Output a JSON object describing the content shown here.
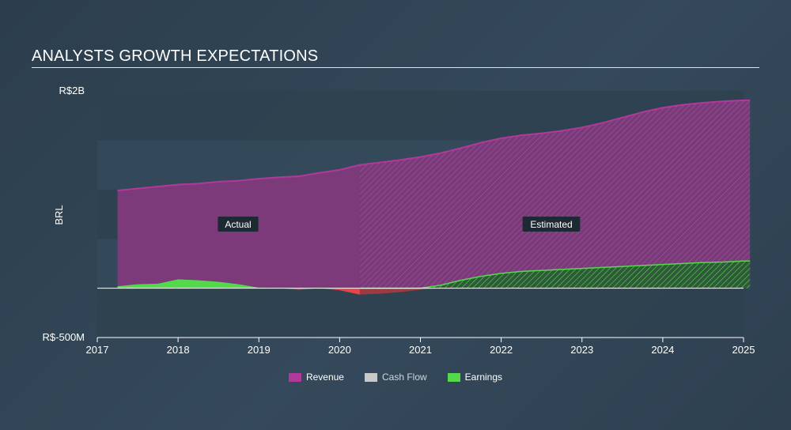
{
  "page_title": "ANALYSTS GROWTH EXPECTATIONS",
  "chart_data": {
    "type": "area",
    "ylabel": "BRL",
    "ylim": [
      -500,
      2000
    ],
    "ytick_labels": [
      {
        "value": 2000,
        "label": "R$2B"
      },
      {
        "value": -500,
        "label": "R$-500M"
      }
    ],
    "xlim": [
      2017,
      2025
    ],
    "xticks": [
      2017,
      2018,
      2019,
      2020,
      2021,
      2022,
      2023,
      2024,
      2025
    ],
    "actual_end": 2020.25,
    "region_labels": {
      "actual": "Actual",
      "estimated": "Estimated"
    },
    "series": [
      {
        "name": "Revenue",
        "color": "#b0399a",
        "x": [
          2017.25,
          2017.5,
          2017.75,
          2018.0,
          2018.25,
          2018.5,
          2018.75,
          2019.0,
          2019.25,
          2019.5,
          2019.75,
          2020.0,
          2020.25,
          2020.5,
          2020.75,
          2021.0,
          2021.25,
          2021.5,
          2021.75,
          2022.0,
          2022.25,
          2022.5,
          2022.75,
          2023.0,
          2023.25,
          2023.5,
          2023.75,
          2024.0,
          2024.25,
          2024.5,
          2024.75,
          2025.0,
          2025.08
        ],
        "values": [
          990,
          1010,
          1030,
          1050,
          1060,
          1080,
          1090,
          1110,
          1125,
          1135,
          1170,
          1200,
          1250,
          1275,
          1300,
          1330,
          1370,
          1420,
          1475,
          1520,
          1550,
          1570,
          1595,
          1630,
          1675,
          1730,
          1785,
          1830,
          1860,
          1880,
          1895,
          1905,
          1905
        ]
      },
      {
        "name": "Earnings",
        "color": "#55d94c",
        "x": [
          2017.25,
          2017.5,
          2017.75,
          2018.0,
          2018.25,
          2018.5,
          2018.75,
          2019.0,
          2019.25,
          2019.5,
          2019.75,
          2020.0,
          2020.25,
          2020.5,
          2020.75,
          2021.0,
          2021.25,
          2021.5,
          2021.75,
          2022.0,
          2022.25,
          2022.5,
          2022.75,
          2023.0,
          2023.25,
          2023.5,
          2023.75,
          2024.0,
          2024.25,
          2024.5,
          2024.75,
          2025.0,
          2025.08
        ],
        "values": [
          20,
          40,
          45,
          90,
          80,
          65,
          40,
          5,
          0,
          -15,
          5,
          -20,
          -65,
          -55,
          -40,
          -15,
          30,
          80,
          120,
          150,
          170,
          180,
          190,
          200,
          210,
          220,
          230,
          240,
          250,
          260,
          265,
          275,
          275
        ]
      },
      {
        "name": "Cash Flow",
        "color": "#c8c8c8",
        "x": [],
        "values": []
      }
    ],
    "legend": [
      {
        "name": "Revenue",
        "color": "#b0399a"
      },
      {
        "name": "Cash Flow",
        "color": "#c8c8c8"
      },
      {
        "name": "Earnings",
        "color": "#55d94c"
      }
    ]
  }
}
